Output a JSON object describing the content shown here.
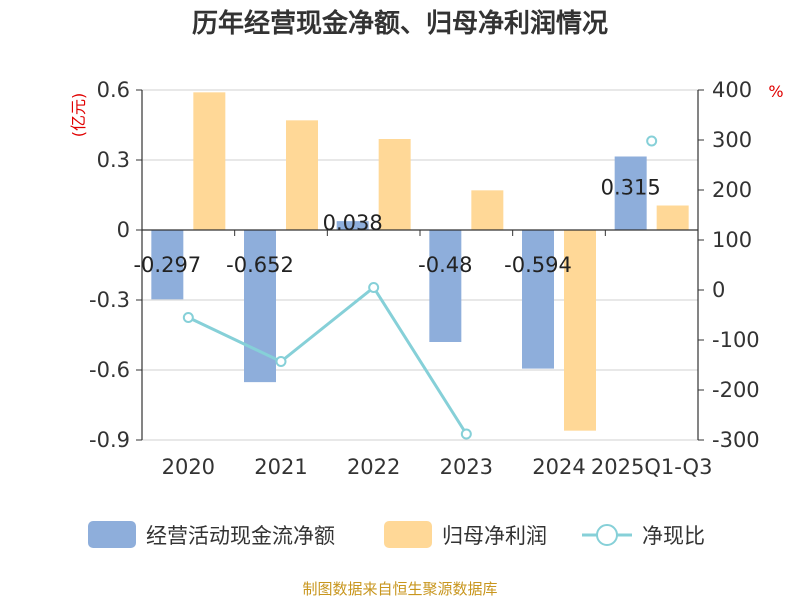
{
  "chart_data": {
    "type": "bar",
    "title": "历年经营现金净额、归母净利润情况",
    "categories": [
      "2020",
      "2021",
      "2022",
      "2023",
      "2024",
      "2025Q1-Q3"
    ],
    "left_axis": {
      "unit": "(亿元)",
      "ylim": [
        -0.9,
        0.6
      ],
      "ticks": [
        0.6,
        0.3,
        0,
        -0.3,
        -0.6,
        -0.9
      ],
      "tick_labels": [
        "0.6",
        "0.3",
        "0",
        "-0.3",
        "-0.6",
        "-0.9"
      ]
    },
    "right_axis": {
      "unit": "%",
      "ylim": [
        -300,
        400
      ],
      "ticks": [
        400,
        300,
        200,
        100,
        0,
        -100,
        -200,
        -300
      ],
      "tick_labels": [
        "400",
        "300",
        "200",
        "100",
        "0",
        "-100",
        "-200",
        "-300"
      ]
    },
    "series": [
      {
        "name": "经营活动现金流净额",
        "type": "bar",
        "axis": "left",
        "color": "#8eaedb",
        "values": [
          -0.297,
          -0.652,
          0.038,
          -0.48,
          -0.594,
          0.315
        ],
        "labels": [
          "-0.297",
          "-0.652",
          "0.038",
          "-0.48",
          "-0.594",
          "0.315"
        ]
      },
      {
        "name": "归母净利润",
        "type": "bar",
        "axis": "left",
        "color": "#ffd897",
        "values": [
          0.59,
          0.47,
          0.39,
          0.17,
          -0.86,
          0.105
        ]
      },
      {
        "name": "净现比",
        "type": "line",
        "axis": "right",
        "color": "#86d0d8",
        "values": [
          -55,
          -143,
          5,
          -288,
          null,
          298
        ]
      }
    ],
    "grid": true,
    "legend_position": "bottom"
  },
  "source_text": "制图数据来自恒生聚源数据库"
}
